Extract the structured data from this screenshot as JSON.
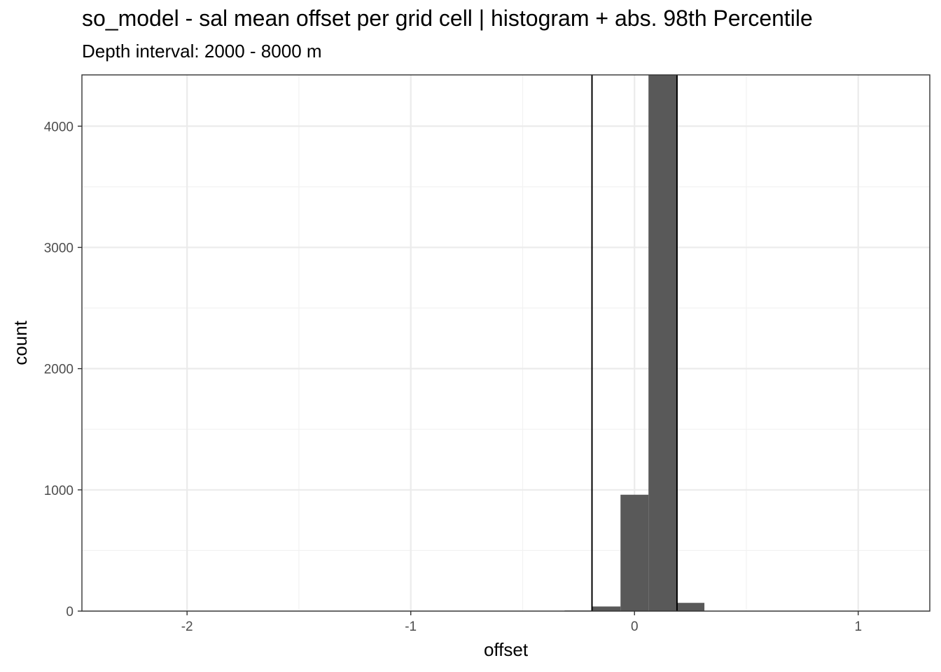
{
  "chart_data": {
    "type": "bar",
    "title": "so_model  -  sal mean offset per grid cell | histogram + abs. 98th Percentile",
    "subtitle": "Depth interval: 2000 - 8000 m",
    "xlabel": "offset",
    "ylabel": "count",
    "xlim": [
      -2.47,
      1.32
    ],
    "ylim": [
      0,
      4423
    ],
    "x_ticks": [
      -2,
      -1,
      0,
      1
    ],
    "x_tick_labels": [
      "-2",
      "-1",
      "0",
      "1"
    ],
    "y_ticks": [
      0,
      1000,
      2000,
      3000,
      4000
    ],
    "y_tick_labels": [
      "0",
      "1000",
      "2000",
      "3000",
      "4000"
    ],
    "grid": true,
    "bin_width": 0.125,
    "bins": [
      {
        "x0": -0.3125,
        "x1": -0.1875,
        "count": 5
      },
      {
        "x0": -0.1875,
        "x1": -0.0625,
        "count": 38
      },
      {
        "x0": -0.0625,
        "x1": 0.0625,
        "count": 960
      },
      {
        "x0": 0.0625,
        "x1": 0.1875,
        "count": 4423
      },
      {
        "x0": 0.1875,
        "x1": 0.3125,
        "count": 68
      }
    ],
    "percentile_lines": [
      -0.19,
      0.19
    ],
    "colors": {
      "bar": "#595959",
      "line": "#000000",
      "grid_major": "#ebebeb",
      "grid_minor": "#f2f2f2",
      "panel_border": "#333333"
    }
  }
}
